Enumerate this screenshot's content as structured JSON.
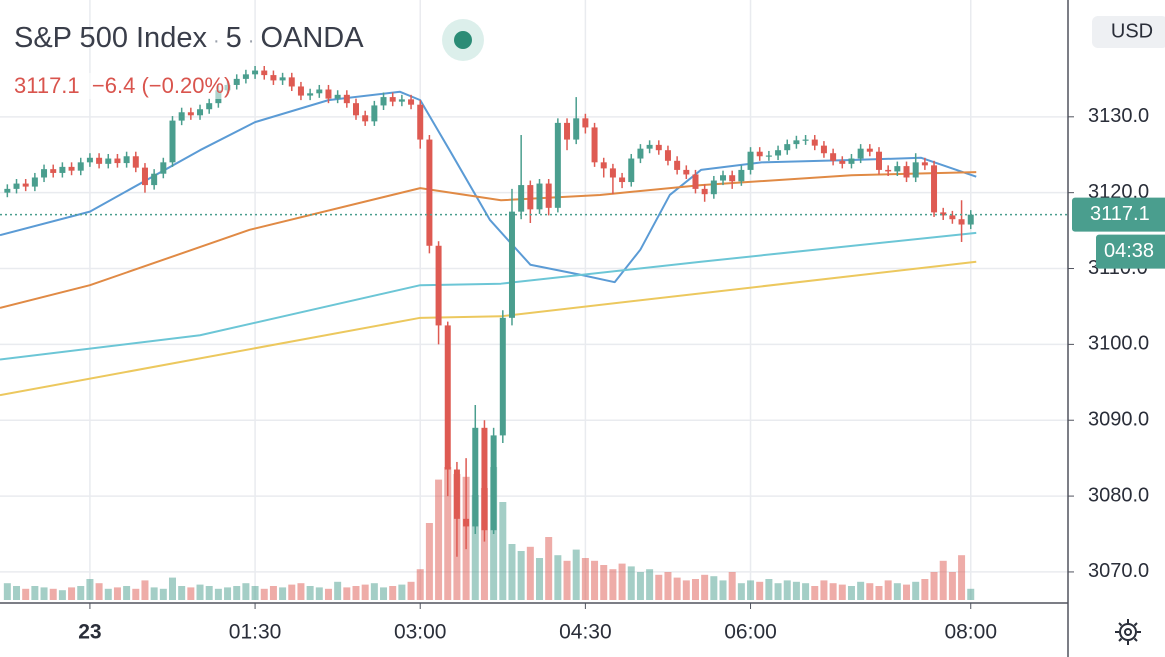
{
  "chart_data": {
    "type": "candlestick",
    "title": "S&P 500 Index",
    "interval": "5",
    "source": "OANDA",
    "last_price": 3117.1,
    "change": "−6.4",
    "change_percent": "(−0.20%)",
    "currency": "USD",
    "countdown": "04:38",
    "xlim": [
      -49,
      533
    ],
    "ylim": [
      3066.3,
      3145.4
    ],
    "xticks": [
      {
        "value": 0,
        "label": "23"
      },
      {
        "value": 90,
        "label": "01:30"
      },
      {
        "value": 180,
        "label": "03:00"
      },
      {
        "value": 270,
        "label": "04:30"
      },
      {
        "value": 360,
        "label": "06:00"
      },
      {
        "value": 480,
        "label": "08:00"
      }
    ],
    "yticks": [
      {
        "value": 3070,
        "label": "3070.0"
      },
      {
        "value": 3080,
        "label": "3080.0"
      },
      {
        "value": 3090,
        "label": "3090.0"
      },
      {
        "value": 3100,
        "label": "3100.0"
      },
      {
        "value": 3110,
        "label": "3110.0"
      },
      {
        "value": 3120,
        "label": "3120.0"
      },
      {
        "value": 3130,
        "label": "3130.0"
      }
    ],
    "grid": true,
    "up_color": "#4a9e8e",
    "down_color": "#de5a52",
    "candles": {
      "x": [
        -45,
        -40,
        -35,
        -30,
        -25,
        -20,
        -15,
        -10,
        -5,
        0,
        5,
        10,
        15,
        20,
        25,
        30,
        35,
        40,
        45,
        50,
        55,
        60,
        65,
        70,
        75,
        80,
        85,
        90,
        95,
        100,
        105,
        110,
        115,
        120,
        125,
        130,
        135,
        140,
        145,
        150,
        155,
        160,
        165,
        170,
        175,
        180,
        185,
        190,
        195,
        200,
        205,
        210,
        215,
        220,
        225,
        230,
        235,
        240,
        245,
        250,
        255,
        260,
        265,
        270,
        275,
        280,
        285,
        290,
        295,
        300,
        305,
        310,
        315,
        320,
        325,
        330,
        335,
        340,
        345,
        350,
        355,
        360,
        365,
        370,
        375,
        380,
        385,
        390,
        395,
        400,
        405,
        410,
        415,
        420,
        425,
        430,
        435,
        440,
        445,
        450,
        455,
        460,
        465,
        470,
        475,
        480
      ],
      "open": [
        3120.0,
        3120.5,
        3121.2,
        3120.8,
        3122.0,
        3123.1,
        3122.6,
        3123.4,
        3122.9,
        3124.0,
        3124.6,
        3123.8,
        3124.5,
        3123.9,
        3124.8,
        3123.3,
        3121.0,
        3122.5,
        3124.0,
        3129.5,
        3130.6,
        3130.2,
        3131.0,
        3131.8,
        3133.5,
        3134.2,
        3135.0,
        3135.6,
        3136.1,
        3135.5,
        3134.8,
        3135.2,
        3134.0,
        3132.8,
        3133.1,
        3133.6,
        3132.4,
        3132.9,
        3131.8,
        3130.2,
        3129.4,
        3131.5,
        3132.6,
        3132.0,
        3132.3,
        3131.6,
        3127.0,
        3113.0,
        3102.5,
        3083.5,
        3077.0,
        3076.0,
        3089.0,
        3075.5,
        3088.0,
        3103.5,
        3117.5,
        3121.0,
        3117.8,
        3121.2,
        3118.0,
        3129.2,
        3127.0,
        3129.8,
        3128.6,
        3124.0,
        3123.2,
        3122.0,
        3121.4,
        3124.5,
        3125.8,
        3126.3,
        3125.6,
        3124.2,
        3123.0,
        3122.4,
        3120.5,
        3119.8,
        3121.6,
        3122.3,
        3121.5,
        3123.0,
        3125.4,
        3124.8,
        3124.9,
        3125.6,
        3126.4,
        3126.9,
        3127.0,
        3126.2,
        3125.2,
        3124.2,
        3123.8,
        3124.5,
        3125.8,
        3125.4,
        3123.0,
        3122.8,
        3123.5,
        3122.0,
        3124.0,
        3123.6,
        3117.4,
        3117.0,
        3116.5,
        3115.8
      ],
      "high": [
        3121.1,
        3121.8,
        3121.8,
        3122.6,
        3123.7,
        3123.7,
        3124.0,
        3124.0,
        3124.6,
        3125.2,
        3125.2,
        3125.1,
        3125.1,
        3125.4,
        3125.4,
        3123.9,
        3123.1,
        3124.6,
        3130.1,
        3131.2,
        3131.2,
        3131.6,
        3132.4,
        3134.1,
        3134.8,
        3135.6,
        3136.2,
        3136.7,
        3136.7,
        3136.1,
        3135.8,
        3135.8,
        3134.6,
        3133.7,
        3134.2,
        3134.2,
        3133.5,
        3133.5,
        3132.4,
        3130.8,
        3132.1,
        3133.2,
        3133.2,
        3132.9,
        3132.9,
        3132.2,
        3127.6,
        3113.6,
        3103.0,
        3084.5,
        3085.0,
        3092.0,
        3090.0,
        3089.0,
        3104.5,
        3120.5,
        3127.6,
        3121.6,
        3121.8,
        3121.8,
        3129.8,
        3129.8,
        3132.6,
        3130.4,
        3129.2,
        3124.6,
        3123.8,
        3122.6,
        3125.1,
        3126.4,
        3126.9,
        3126.9,
        3126.2,
        3124.8,
        3123.6,
        3123.0,
        3121.1,
        3122.2,
        3122.9,
        3122.9,
        3123.6,
        3126.0,
        3126.0,
        3125.5,
        3126.2,
        3127.0,
        3127.5,
        3127.6,
        3127.6,
        3126.8,
        3125.8,
        3124.8,
        3125.1,
        3126.4,
        3126.4,
        3126.0,
        3123.6,
        3124.1,
        3124.1,
        3125.2,
        3124.6,
        3124.2,
        3118.0,
        3117.6,
        3119.0,
        3117.7
      ],
      "low": [
        3119.4,
        3119.9,
        3120.2,
        3120.2,
        3121.4,
        3122.0,
        3122.0,
        3122.3,
        3122.3,
        3123.4,
        3123.2,
        3123.2,
        3123.3,
        3123.3,
        3122.7,
        3120.0,
        3120.4,
        3121.9,
        3123.4,
        3128.9,
        3129.6,
        3129.6,
        3130.4,
        3131.2,
        3132.9,
        3133.6,
        3134.4,
        3135.0,
        3134.9,
        3134.2,
        3134.2,
        3133.4,
        3132.2,
        3132.2,
        3132.5,
        3131.8,
        3131.8,
        3131.2,
        3129.6,
        3128.8,
        3128.8,
        3130.9,
        3131.4,
        3131.4,
        3131.0,
        3125.8,
        3112.0,
        3100.0,
        3080.0,
        3072.0,
        3073.0,
        3075.0,
        3074.0,
        3075.0,
        3087.0,
        3102.5,
        3116.5,
        3116.0,
        3117.2,
        3117.0,
        3117.4,
        3125.6,
        3126.4,
        3127.8,
        3123.4,
        3122.0,
        3119.8,
        3120.6,
        3120.8,
        3123.9,
        3125.2,
        3125.0,
        3123.6,
        3122.4,
        3121.8,
        3119.9,
        3118.8,
        3119.2,
        3121.0,
        3120.5,
        3120.9,
        3122.4,
        3124.2,
        3124.2,
        3124.3,
        3125.0,
        3125.8,
        3126.3,
        3125.6,
        3124.6,
        3123.6,
        3123.2,
        3123.2,
        3123.9,
        3124.8,
        3122.4,
        3122.2,
        3122.2,
        3121.4,
        3121.4,
        3123.0,
        3116.8,
        3116.4,
        3115.9,
        3113.5,
        3115.2
      ],
      "close": [
        3120.5,
        3121.2,
        3120.8,
        3122.0,
        3123.1,
        3122.6,
        3123.4,
        3122.9,
        3124.0,
        3124.6,
        3123.8,
        3124.5,
        3123.9,
        3124.8,
        3123.3,
        3121.0,
        3122.5,
        3124.0,
        3129.5,
        3130.6,
        3130.2,
        3131.0,
        3131.8,
        3133.5,
        3134.2,
        3135.0,
        3135.6,
        3136.1,
        3135.5,
        3134.8,
        3135.2,
        3134.0,
        3132.8,
        3133.1,
        3133.6,
        3132.4,
        3132.9,
        3131.8,
        3130.2,
        3129.4,
        3131.5,
        3132.6,
        3132.0,
        3132.3,
        3131.6,
        3127.0,
        3113.0,
        3102.5,
        3083.5,
        3077.0,
        3076.0,
        3089.0,
        3075.5,
        3088.0,
        3103.5,
        3117.5,
        3121.0,
        3117.8,
        3121.2,
        3118.0,
        3129.2,
        3127.0,
        3129.8,
        3128.6,
        3124.0,
        3123.2,
        3122.0,
        3121.4,
        3124.5,
        3125.8,
        3126.3,
        3125.6,
        3124.2,
        3123.0,
        3122.4,
        3120.5,
        3119.8,
        3121.6,
        3122.3,
        3121.5,
        3123.0,
        3125.4,
        3124.8,
        3124.9,
        3125.6,
        3126.4,
        3126.9,
        3127.0,
        3126.2,
        3125.2,
        3124.2,
        3123.8,
        3124.5,
        3125.8,
        3125.4,
        3123.0,
        3122.8,
        3123.5,
        3122.0,
        3124.0,
        3123.6,
        3117.4,
        3117.0,
        3116.5,
        3115.8,
        3117.1
      ],
      "volume": [
        12,
        10,
        8,
        10,
        9,
        8,
        7,
        9,
        10,
        15,
        12,
        8,
        9,
        10,
        8,
        14,
        9,
        8,
        16,
        10,
        9,
        11,
        10,
        8,
        9,
        10,
        12,
        10,
        8,
        10,
        9,
        11,
        12,
        10,
        9,
        8,
        13,
        9,
        10,
        11,
        12,
        9,
        10,
        11,
        13,
        22,
        55,
        86,
        95,
        90,
        88,
        75,
        80,
        95,
        70,
        40,
        35,
        38,
        30,
        45,
        32,
        28,
        36,
        30,
        28,
        25,
        22,
        26,
        24,
        20,
        22,
        18,
        20,
        16,
        14,
        15,
        18,
        17,
        14,
        20,
        12,
        14,
        13,
        15,
        12,
        14,
        13,
        12,
        10,
        14,
        12,
        11,
        10,
        13,
        12,
        10,
        14,
        12,
        11,
        13,
        15,
        20,
        28,
        20,
        32,
        8
      ]
    },
    "series": [
      {
        "color": "#5b9bd5",
        "x": [
          -49,
          0,
          60,
          90,
          130,
          169,
          180,
          196,
          218,
          240,
          267,
          286,
          300,
          316,
          333,
          366,
          415,
          453,
          483
        ],
        "values": [
          3114.4,
          3117.5,
          3125.6,
          3129.3,
          3132.2,
          3133.3,
          3132.2,
          3125.6,
          3116.4,
          3110.5,
          3109.2,
          3108.2,
          3112.5,
          3119.7,
          3123.0,
          3124.0,
          3124.3,
          3124.6,
          3122.1
        ]
      },
      {
        "color": "#e08a45",
        "x": [
          -49,
          0,
          87,
          180,
          224,
          278,
          333,
          415,
          483
        ],
        "values": [
          3104.8,
          3107.8,
          3115.1,
          3120.6,
          3119.0,
          3119.7,
          3121.0,
          3122.3,
          3122.7
        ]
      },
      {
        "color": "#6cc6d6",
        "x": [
          -49,
          60,
          180,
          224,
          333,
          483
        ],
        "values": [
          3098.0,
          3101.2,
          3107.8,
          3108.0,
          3110.9,
          3114.7
        ]
      },
      {
        "color": "#ecc85e",
        "x": [
          -49,
          180,
          224,
          483
        ],
        "values": [
          3093.3,
          3103.5,
          3103.7,
          3110.9
        ]
      }
    ]
  }
}
